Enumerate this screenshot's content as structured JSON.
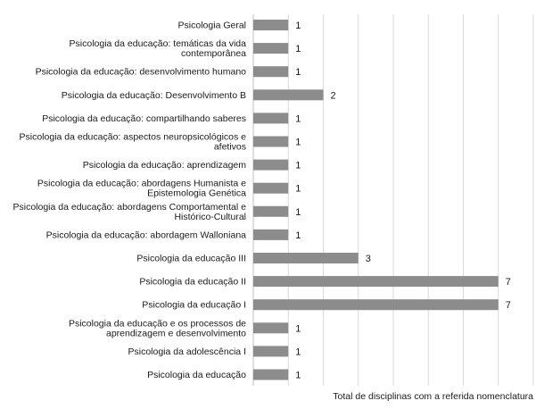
{
  "chart_data": {
    "type": "bar",
    "orientation": "horizontal",
    "categories": [
      [
        "Psicologia Geral"
      ],
      [
        "Psicologia da educação: temáticas da vida",
        "contemporânea"
      ],
      [
        "Psicologia da educação: desenvolvimento humano"
      ],
      [
        "Psicologia da educação: Desenvolvimento B"
      ],
      [
        "Psicologia da educação: compartilhando saberes"
      ],
      [
        "Psicologia da educação: aspectos neuropsicológicos e",
        "afetivos"
      ],
      [
        "Psicologia da educação: aprendizagem"
      ],
      [
        "Psicologia da educação: abordagens Humanista e",
        "Epistemologia Genética"
      ],
      [
        "Psicologia da educação: abordagens Comportamental e",
        "Histórico-Cultural"
      ],
      [
        "Psicologia da educação: abordagem Walloniana"
      ],
      [
        "Psicologia da educação III"
      ],
      [
        "Psicologia da educação II"
      ],
      [
        "Psicologia da educação I"
      ],
      [
        "Psicologia da educação e os processos de",
        "aprendizagem e desenvolvimento"
      ],
      [
        "Psicologia da adolescência I"
      ],
      [
        "Psicologia da educação"
      ]
    ],
    "values": [
      1,
      1,
      1,
      2,
      1,
      1,
      1,
      1,
      1,
      1,
      3,
      7,
      7,
      1,
      1,
      1
    ],
    "value_labels": [
      "1",
      "1",
      "1",
      "2",
      "1",
      "1",
      "1",
      "1",
      "1",
      "1",
      "3",
      "7",
      "7",
      "1",
      "1",
      "1"
    ],
    "xlabel": "Total de disciplinas com a referida nomenclatura",
    "xlim": [
      0,
      8
    ],
    "grid": true,
    "bar_color": "#8c8c8c",
    "grid_color": "#d9d9d9",
    "legend": "none"
  }
}
